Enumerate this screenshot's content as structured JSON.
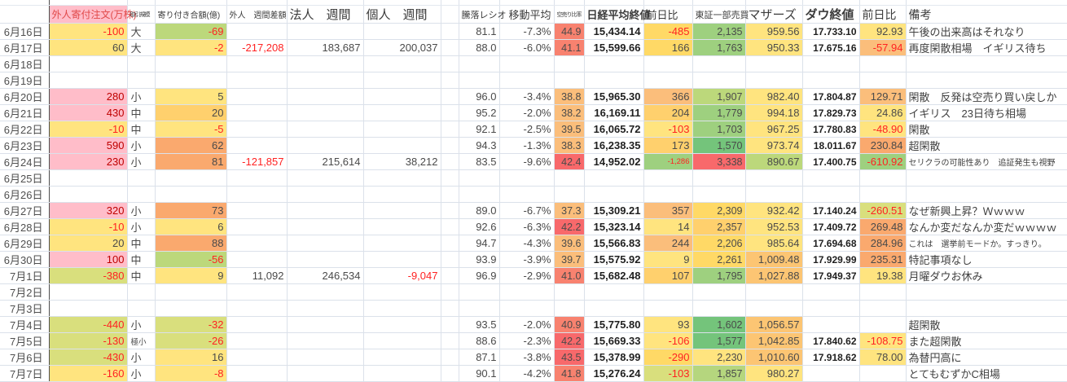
{
  "palette": {
    "pink": "#ffbdc9",
    "yellow": "#ffe47f",
    "mustard": "#ffd966",
    "paleOrange": "#ffd06d",
    "amber": "#fcc573",
    "orange": "#fbbe7b",
    "deepOrange": "#faa96e",
    "redOrange": "#f8826f",
    "red": "#f8696b",
    "olive": "#bcd87b",
    "yellowGreen": "#d9df7d",
    "lightGreen": "#b5d67e",
    "green": "#9ed07f",
    "deepGreen": "#74c47b"
  },
  "text_colors": {
    "r": "#ff2222",
    "d": "#bf0000"
  },
  "header": {
    "foreign_order": "外人寄付注文(万株)",
    "foreign_order_color": "#e04848",
    "foreign_order_bg": "#ffbdc9",
    "size": "取引規模",
    "open_amount": "寄り付き合額(億)",
    "foreign_week": "外人　週間差額",
    "corp_week": "法人　週間",
    "indiv_week": "個人　週間",
    "ratio": "騰落レシオ",
    "moving_avg": "移動平均",
    "short_ratio": "空売り比率",
    "nikkei": "日経平均終値",
    "nikkei_chg": "前日比",
    "tse_volume": "東証一部売買",
    "mothers": "マザーズ",
    "dow": "ダウ終値",
    "dow_chg": "前日比",
    "remarks": "備考"
  },
  "rows": [
    {
      "date": "6月16日",
      "fo": {
        "v": "-100",
        "bg": "yellow",
        "fg": "r"
      },
      "size": {
        "v": "大"
      },
      "oa": {
        "v": "-69",
        "bg": "olive",
        "fg": "r"
      },
      "ratio": "81.1",
      "ma": "-7.3%",
      "sr": {
        "v": "44.9",
        "bg": "redOrange"
      },
      "nk": "15,434.14",
      "nc": {
        "v": "-485",
        "bg": "mustard",
        "fg": "r"
      },
      "tv": {
        "v": "2,135",
        "bg": "green"
      },
      "mo": {
        "v": "959.56",
        "bg": "yellow"
      },
      "dw": "17.733.10",
      "dc": {
        "v": "92.93",
        "bg": "yellow"
      },
      "rm": {
        "v": "午後の出来高はそれなり"
      }
    },
    {
      "date": "6月17日",
      "fo": {
        "v": "60",
        "bg": "yellow"
      },
      "size": {
        "v": "大"
      },
      "oa": {
        "v": "-2",
        "bg": "yellow",
        "fg": "r"
      },
      "fw": {
        "v": "-217,208",
        "fg": "r"
      },
      "cw": {
        "v": "183,687"
      },
      "iw": {
        "v": "200,037"
      },
      "ratio": "88.0",
      "ma": "-6.0%",
      "sr": {
        "v": "41.1",
        "bg": "redOrange"
      },
      "nk": "15,599.66",
      "nc": {
        "v": "166",
        "bg": "mustard"
      },
      "tv": {
        "v": "1,763",
        "bg": "green"
      },
      "mo": {
        "v": "950.33",
        "bg": "yellow"
      },
      "dw": "17.675.16",
      "dc": {
        "v": "-57.94",
        "bg": "orange",
        "fg": "r"
      },
      "rm": {
        "v": "再度閑散相場　イギリス待ち"
      }
    },
    {
      "date": "6月18日"
    },
    {
      "date": "6月19日"
    },
    {
      "date": "6月20日",
      "fo": {
        "v": "280",
        "bg": "pink",
        "fg": "d"
      },
      "size": {
        "v": "小"
      },
      "oa": {
        "v": "5",
        "bg": "yellow"
      },
      "ratio": "96.0",
      "ma": "-3.4%",
      "sr": {
        "v": "38.8",
        "bg": "orange"
      },
      "nk": "15,965.30",
      "nc": {
        "v": "366",
        "bg": "orange"
      },
      "tv": {
        "v": "1,907",
        "bg": "olive"
      },
      "mo": {
        "v": "982.40",
        "bg": "yellow"
      },
      "dw": "17.804.87",
      "dc": {
        "v": "129.71",
        "bg": "orange"
      },
      "rm": {
        "v": "閑散　反発は空売り買い戻しか"
      }
    },
    {
      "date": "6月21日",
      "fo": {
        "v": "430",
        "bg": "pink",
        "fg": "d"
      },
      "size": {
        "v": "中"
      },
      "oa": {
        "v": "20",
        "bg": "paleOrange"
      },
      "ratio": "95.2",
      "ma": "-2.0%",
      "sr": {
        "v": "38.2",
        "bg": "orange"
      },
      "nk": "16,169.11",
      "nc": {
        "v": "204",
        "bg": "paleOrange"
      },
      "tv": {
        "v": "1,779",
        "bg": "green"
      },
      "mo": {
        "v": "994.18",
        "bg": "yellow"
      },
      "dw": "17.829.73",
      "dc": {
        "v": "24.86",
        "bg": "yellow"
      },
      "rm": {
        "v": "イギリス　23日待ち相場"
      }
    },
    {
      "date": "6月22日",
      "fo": {
        "v": "-10",
        "bg": "yellow",
        "fg": "r"
      },
      "size": {
        "v": "中"
      },
      "oa": {
        "v": "-5",
        "bg": "yellow",
        "fg": "r"
      },
      "ratio": "92.1",
      "ma": "-2.5%",
      "sr": {
        "v": "39.5",
        "bg": "orange"
      },
      "nk": "16,065.72",
      "nc": {
        "v": "-103",
        "bg": "yellow",
        "fg": "r"
      },
      "tv": {
        "v": "1,703",
        "bg": "green"
      },
      "mo": {
        "v": "967.25",
        "bg": "yellow"
      },
      "dw": "17.780.83",
      "dc": {
        "v": "-48.90",
        "bg": "yellow",
        "fg": "r"
      },
      "rm": {
        "v": "閑散"
      }
    },
    {
      "date": "6月23日",
      "fo": {
        "v": "590",
        "bg": "pink",
        "fg": "d"
      },
      "size": {
        "v": "小"
      },
      "oa": {
        "v": "62",
        "bg": "deepOrange"
      },
      "ratio": "94.3",
      "ma": "-1.3%",
      "sr": {
        "v": "38.3",
        "bg": "orange"
      },
      "nk": "16,238.35",
      "nc": {
        "v": "173",
        "bg": "paleOrange"
      },
      "tv": {
        "v": "1,570",
        "bg": "deepGreen"
      },
      "mo": {
        "v": "973.74",
        "bg": "yellow"
      },
      "dw": "18.011.67",
      "dc": {
        "v": "230.84",
        "bg": "deepOrange"
      },
      "rm": {
        "v": "超閑散"
      }
    },
    {
      "date": "6月24日",
      "fo": {
        "v": "230",
        "bg": "pink",
        "fg": "d"
      },
      "size": {
        "v": "小"
      },
      "oa": {
        "v": "81",
        "bg": "deepOrange"
      },
      "fw": {
        "v": "-121,857",
        "fg": "r"
      },
      "cw": {
        "v": "215,614"
      },
      "iw": {
        "v": "38,212"
      },
      "ratio": "83.5",
      "ma": "-9.6%",
      "sr": {
        "v": "42.4",
        "bg": "red"
      },
      "nk": "14,952.02",
      "nc": {
        "v": "-1,286",
        "bg": "green",
        "fg": "r",
        "sm": true
      },
      "tv": {
        "v": "3,338",
        "bg": "red"
      },
      "mo": {
        "v": "890.67",
        "bg": "olive"
      },
      "dw": "17.400.75",
      "dc": {
        "v": "-610.92",
        "bg": "green",
        "fg": "r"
      },
      "rm": {
        "v": "セリクラの可能性あり　追証発生も視野",
        "sm": true
      }
    },
    {
      "date": "6月25日"
    },
    {
      "date": "6月26日"
    },
    {
      "date": "6月27日",
      "fo": {
        "v": "320",
        "bg": "pink",
        "fg": "d"
      },
      "size": {
        "v": "小"
      },
      "oa": {
        "v": "73",
        "bg": "deepOrange"
      },
      "ratio": "89.0",
      "ma": "-6.7%",
      "sr": {
        "v": "37.3",
        "bg": "orange"
      },
      "nk": "15,309.21",
      "nc": {
        "v": "357",
        "bg": "orange"
      },
      "tv": {
        "v": "2,309",
        "bg": "mustard"
      },
      "mo": {
        "v": "932.42",
        "bg": "yellow"
      },
      "dw": "17.140.24",
      "dc": {
        "v": "-260.51",
        "bg": "yellowGreen",
        "fg": "r"
      },
      "rm": {
        "v": "なぜ新興上昇？Ｗｗｗｗ"
      }
    },
    {
      "date": "6月28日",
      "fo": {
        "v": "-10",
        "bg": "yellow",
        "fg": "r"
      },
      "size": {
        "v": "小"
      },
      "oa": {
        "v": "6",
        "bg": "yellow"
      },
      "ratio": "92.6",
      "ma": "-6.3%",
      "sr": {
        "v": "42.2",
        "bg": "red"
      },
      "nk": "15,323.14",
      "nc": {
        "v": "14",
        "bg": "yellow"
      },
      "tv": {
        "v": "2,357",
        "bg": "paleOrange"
      },
      "mo": {
        "v": "952.53",
        "bg": "yellow"
      },
      "dw": "17.409.72",
      "dc": {
        "v": "269.48",
        "bg": "deepOrange"
      },
      "rm": {
        "v": "なんか変だなんか変だｗｗｗｗ"
      }
    },
    {
      "date": "6月29日",
      "fo": {
        "v": "20",
        "bg": "yellow"
      },
      "size": {
        "v": "中"
      },
      "oa": {
        "v": "88",
        "bg": "deepOrange"
      },
      "ratio": "94.7",
      "ma": "-4.3%",
      "sr": {
        "v": "39.6",
        "bg": "orange"
      },
      "nk": "15,566.83",
      "nc": {
        "v": "244",
        "bg": "orange"
      },
      "tv": {
        "v": "2,206",
        "bg": "mustard"
      },
      "mo": {
        "v": "985.64",
        "bg": "yellow"
      },
      "dw": "17.694.68",
      "dc": {
        "v": "284.96",
        "bg": "deepOrange"
      },
      "rm": {
        "v": "これは　選挙前モードか。すっきり。",
        "sm": true
      }
    },
    {
      "date": "6月30日",
      "fo": {
        "v": "100",
        "bg": "pink",
        "fg": "d"
      },
      "size": {
        "v": "中"
      },
      "oa": {
        "v": "-56",
        "bg": "olive",
        "fg": "r"
      },
      "ratio": "93.9",
      "ma": "-3.9%",
      "sr": {
        "v": "39.7",
        "bg": "orange"
      },
      "nk": "15,575.92",
      "nc": {
        "v": "9",
        "bg": "yellow"
      },
      "tv": {
        "v": "2,261",
        "bg": "mustard"
      },
      "mo": {
        "v": "1,009.48",
        "bg": "amber"
      },
      "dw": "17.929.99",
      "dc": {
        "v": "235.31",
        "bg": "deepOrange"
      },
      "rm": {
        "v": "特記事項なし"
      }
    },
    {
      "date": "7月1日",
      "fo": {
        "v": "-380",
        "bg": "yellowGreen",
        "fg": "r"
      },
      "size": {
        "v": "中"
      },
      "oa": {
        "v": "9",
        "bg": "yellow"
      },
      "fw": {
        "v": "11,092"
      },
      "cw": {
        "v": "246,534"
      },
      "iw": {
        "v": "-9,047",
        "fg": "r"
      },
      "ratio": "96.9",
      "ma": "-2.9%",
      "sr": {
        "v": "41.0",
        "bg": "redOrange"
      },
      "nk": "15,682.48",
      "nc": {
        "v": "107",
        "bg": "paleOrange"
      },
      "tv": {
        "v": "1,795",
        "bg": "green"
      },
      "mo": {
        "v": "1,027.88",
        "bg": "amber"
      },
      "dw": "17.949.37",
      "dc": {
        "v": "19.38",
        "bg": "yellow"
      },
      "rm": {
        "v": "月曜ダウお休み"
      }
    },
    {
      "date": "7月2日"
    },
    {
      "date": "7月3日"
    },
    {
      "date": "7月4日",
      "fo": {
        "v": "-440",
        "bg": "yellowGreen",
        "fg": "r"
      },
      "size": {
        "v": "小"
      },
      "oa": {
        "v": "-32",
        "bg": "yellowGreen",
        "fg": "r"
      },
      "ratio": "93.5",
      "ma": "-2.0%",
      "sr": {
        "v": "40.9",
        "bg": "redOrange"
      },
      "nk": "15,775.80",
      "nc": {
        "v": "93",
        "bg": "yellow"
      },
      "tv": {
        "v": "1,602",
        "bg": "deepGreen"
      },
      "mo": {
        "v": "1,056.57",
        "bg": "amber"
      },
      "dw": "",
      "dc": null,
      "rm": {
        "v": "超閑散"
      }
    },
    {
      "date": "7月5日",
      "fo": {
        "v": "-130",
        "bg": "yellowGreen",
        "fg": "r"
      },
      "size": {
        "v": "極小",
        "sm": true
      },
      "oa": {
        "v": "-26",
        "bg": "yellowGreen",
        "fg": "r"
      },
      "ratio": "88.6",
      "ma": "-2.3%",
      "sr": {
        "v": "42.2",
        "bg": "red"
      },
      "nk": "15,669.33",
      "nc": {
        "v": "-106",
        "bg": "yellow",
        "fg": "r"
      },
      "tv": {
        "v": "1,577",
        "bg": "deepGreen"
      },
      "mo": {
        "v": "1,042.85",
        "bg": "amber"
      },
      "dw": "17.840.62",
      "dc": {
        "v": "-108.75",
        "bg": "yellow",
        "fg": "r"
      },
      "rm": {
        "v": "また超閑散"
      }
    },
    {
      "date": "7月6日",
      "fo": {
        "v": "-430",
        "bg": "yellowGreen",
        "fg": "r"
      },
      "size": {
        "v": "小"
      },
      "oa": {
        "v": "16",
        "bg": "yellow"
      },
      "ratio": "87.1",
      "ma": "-3.8%",
      "sr": {
        "v": "43.5",
        "bg": "red"
      },
      "nk": "15,378.99",
      "nc": {
        "v": "-290",
        "bg": "mustard",
        "fg": "r"
      },
      "tv": {
        "v": "2,230",
        "bg": "yellow"
      },
      "mo": {
        "v": "1,010.60",
        "bg": "amber"
      },
      "dw": "17.918.62",
      "dc": {
        "v": "78.00",
        "bg": "yellow"
      },
      "rm": {
        "v": "為替円高に"
      }
    },
    {
      "date": "7月7日",
      "fo": {
        "v": "-160",
        "bg": "yellow",
        "fg": "r"
      },
      "size": {
        "v": "小"
      },
      "oa": {
        "v": "-8",
        "bg": "yellow",
        "fg": "r"
      },
      "ratio": "90.1",
      "ma": "-4.2%",
      "sr": {
        "v": "41.8",
        "bg": "redOrange"
      },
      "nk": "15,276.24",
      "nc": {
        "v": "-103",
        "bg": "yellowGreen",
        "fg": "r"
      },
      "tv": {
        "v": "1,857",
        "bg": "lightGreen"
      },
      "mo": {
        "v": "980.27",
        "bg": "yellow"
      },
      "dw": "",
      "dc": null,
      "rm": {
        "v": "とてもむずかC相場"
      }
    }
  ]
}
